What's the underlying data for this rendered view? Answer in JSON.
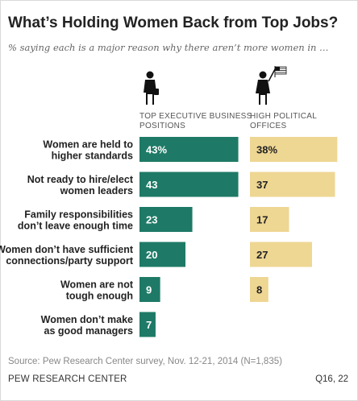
{
  "title": "What’s Holding Women Back from Top Jobs?",
  "subtitle": "% saying each is a major reason why there aren’t more women in …",
  "footer": {
    "source": "Source: Pew Research Center survey, Nov. 12-21, 2014 (N=1,835)",
    "organization": "PEW RESEARCH CENTER",
    "question_ref": "Q16, 22"
  },
  "icons": {
    "business_panel": "businesswoman-icon",
    "political_panel": "politician-with-flag-icon"
  },
  "colors": {
    "business": "#1e7a66",
    "political": "#eed693"
  },
  "chart_data": {
    "type": "bar",
    "orientation": "horizontal",
    "categories": [
      [
        "Women are held to",
        "higher standards"
      ],
      [
        "Not ready to hire/elect",
        "women leaders"
      ],
      [
        "Family responsibilities",
        "don’t leave enough time"
      ],
      [
        "Women don’t have sufficient",
        "connections/party support"
      ],
      [
        "Women are not",
        "tough enough"
      ],
      [
        "Women don’t make",
        "as good managers"
      ]
    ],
    "series": [
      {
        "name": [
          "TOP EXECUTIVE BUSINESS",
          "POSITIONS"
        ],
        "values": [
          43,
          43,
          23,
          20,
          9,
          7
        ],
        "labels": [
          "43%",
          "43",
          "23",
          "20",
          "9",
          "7"
        ]
      },
      {
        "name": [
          "HIGH POLITICAL",
          "OFFICES"
        ],
        "values": [
          38,
          37,
          17,
          27,
          8,
          null
        ],
        "labels": [
          "38%",
          "37",
          "17",
          "27",
          "8",
          ""
        ]
      }
    ],
    "xlim": [
      0,
      45
    ],
    "grid": false,
    "legend": "panel titles above each column"
  }
}
